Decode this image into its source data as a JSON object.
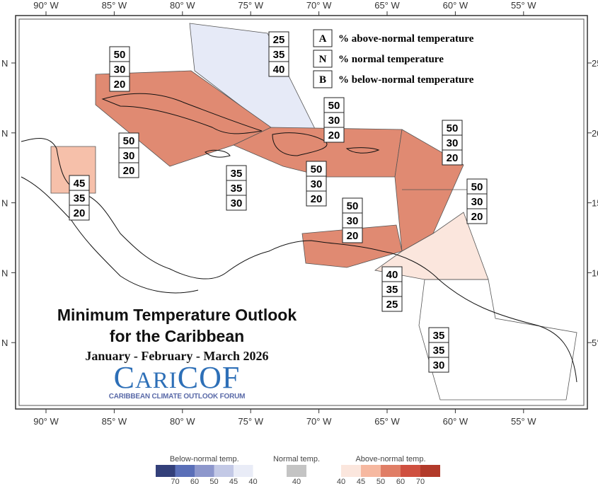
{
  "title": {
    "line1": "Minimum Temperature Outlook",
    "line2": "for the Caribbean",
    "period": "January - February - March 2026"
  },
  "logo": {
    "text": "CariCOF",
    "subtitle": "CARIBBEAN CLIMATE OUTLOOK FORUM"
  },
  "axes": {
    "longitude_labels": [
      "90° W",
      "85° W",
      "80° W",
      "75° W",
      "70° W",
      "65° W",
      "60° W",
      "55° W"
    ],
    "latitude_labels_left": [
      "N",
      "N",
      "N",
      "N",
      "N"
    ],
    "latitude_labels_right": [
      "25",
      "20",
      "15",
      "10",
      "5°"
    ]
  },
  "key": [
    {
      "letter": "A",
      "text": "% above-normal temperature"
    },
    {
      "letter": "N",
      "text": "% normal temperature"
    },
    {
      "letter": "B",
      "text": "% below-normal temperature"
    }
  ],
  "regions": [
    {
      "name": "bahamas",
      "above": 25,
      "normal": 35,
      "below": 40,
      "color": "#e6eaf7"
    },
    {
      "name": "cuba-cayman-jamaica-north",
      "above": 50,
      "normal": 30,
      "below": 20,
      "color": "#e08a72"
    },
    {
      "name": "cuba-south",
      "above": 50,
      "normal": 30,
      "below": 20,
      "color": "#e08a72"
    },
    {
      "name": "turks-caicos",
      "above": 50,
      "normal": 30,
      "below": 20,
      "color": "#e08a72"
    },
    {
      "name": "hispaniola-puerto-rico",
      "above": 50,
      "normal": 30,
      "below": 20,
      "color": "#e08a72"
    },
    {
      "name": "leeward-islands",
      "above": 50,
      "normal": 30,
      "below": 20,
      "color": "#e08a72"
    },
    {
      "name": "windward-islands",
      "above": 50,
      "normal": 30,
      "below": 20,
      "color": "#e08a72"
    },
    {
      "name": "abc-islands",
      "above": 50,
      "normal": 30,
      "below": 20,
      "color": "#e08a72"
    },
    {
      "name": "belize",
      "above": 45,
      "normal": 35,
      "below": 20,
      "color": "#f6c0aa"
    },
    {
      "name": "jamaica-sea",
      "above": 35,
      "normal": 35,
      "below": 30,
      "color": "#ffffff"
    },
    {
      "name": "trinidad-tobago",
      "above": 40,
      "normal": 35,
      "below": 25,
      "color": "#fbe6dd"
    },
    {
      "name": "guianas",
      "above": 35,
      "normal": 35,
      "below": 30,
      "color": "#ffffff"
    }
  ],
  "legend": {
    "below": {
      "label": "Below-normal temp.",
      "ticks": [
        "70",
        "60",
        "50",
        "45",
        "40"
      ],
      "colors": [
        "#33407a",
        "#5a6fb8",
        "#8d97cc",
        "#c3c9e6",
        "#e9ecf7"
      ]
    },
    "normal": {
      "label": "Normal temp.",
      "ticks": [
        "40"
      ],
      "colors": [
        "#c4c4c4"
      ]
    },
    "above": {
      "label": "Above-normal temp.",
      "ticks": [
        "40",
        "45",
        "50",
        "60",
        "70"
      ],
      "colors": [
        "#fbe6dd",
        "#f6b8a0",
        "#e07e66",
        "#cf5040",
        "#b23a2a"
      ]
    }
  }
}
